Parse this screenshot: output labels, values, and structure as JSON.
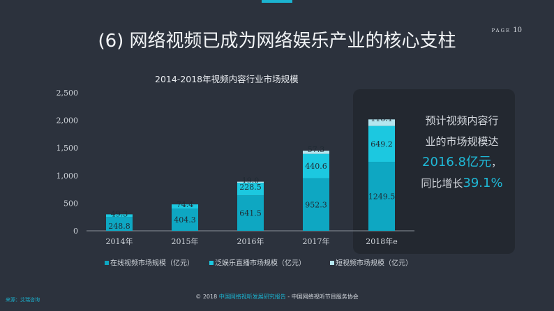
{
  "slide": {
    "title": "(6) 网络视频已成为网络娱乐产业的核心支柱",
    "page_word": "PAGE",
    "page_num": "10"
  },
  "callout": {
    "line1": "预计视频内容行",
    "line2": "业的市场规模达",
    "value": "2016.8亿元",
    "comma": "，",
    "growth_prefix": "同比增长",
    "growth_value": "39.1%"
  },
  "footer": {
    "source": "来源：艾瑞咨询",
    "copyright": "© 2018 ",
    "report": "中国网络视听发展研究报告",
    "sep": " - ",
    "org": "中国网络视听节目服务协会"
  },
  "colors": {
    "online": "#0ea7c2",
    "live": "#1cc8e0",
    "short": "#b4e6ef",
    "axis": "#cfd4da"
  },
  "chart_data": {
    "type": "bar",
    "stacked": true,
    "title": "2014-2018年视频内容行业市场规模",
    "categories": [
      "2014年",
      "2015年",
      "2016年",
      "2017年",
      "2018年e"
    ],
    "series": [
      {
        "name": "在线视频市场规模（亿元）",
        "values": [
          248.8,
          404.3,
          641.5,
          952.3,
          1249.5
        ]
      },
      {
        "name": "泛娱乐直播市场规模（亿元）",
        "values": [
          49.3,
          74.4,
          228.5,
          440.6,
          649.2
        ]
      },
      {
        "name": "短视频市场规模（亿元）",
        "values": [
          null,
          null,
          19.0,
          57.3,
          118.1
        ]
      }
    ],
    "value_labels": [
      [
        "248.8",
        "404.3",
        "641.5",
        "952.3",
        "1249.5"
      ],
      [
        "49.3",
        "74.4",
        "228.5",
        "440.6",
        "649.2"
      ],
      [
        "",
        "",
        "19.0",
        "57.3",
        "118.1"
      ]
    ],
    "ylim": [
      0,
      2500
    ],
    "yticks": [
      0,
      500,
      1000,
      1500,
      2000,
      2500
    ],
    "ytick_labels": [
      "0",
      "500",
      "1,000",
      "1,500",
      "2,000",
      "2,500"
    ],
    "xlabel": "",
    "ylabel": "",
    "legend_position": "bottom"
  }
}
